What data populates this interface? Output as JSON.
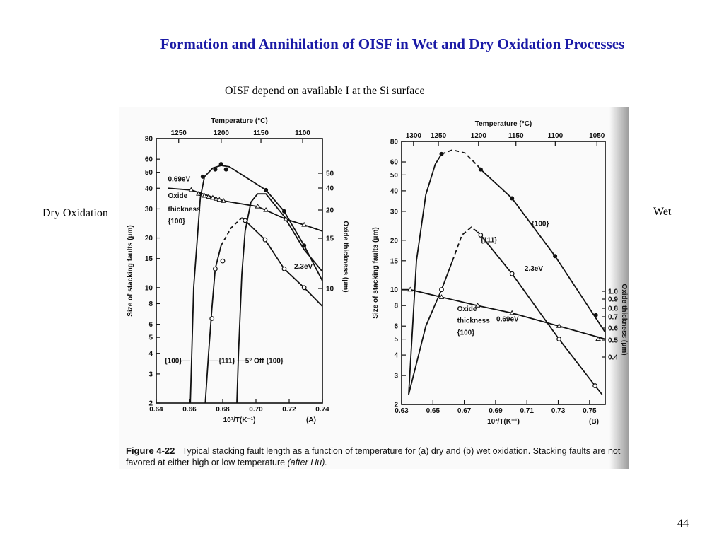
{
  "slide": {
    "title": "Formation and Annihilation of OISF in Wet and Dry Oxidation Processes",
    "subtitle": "OISF depend on available I at the Si surface",
    "left_label": "Dry Oxidation",
    "right_label": "Wet",
    "page_number": "44"
  },
  "caption": {
    "figure_label": "Figure 4-22",
    "text_main": "Typical stacking fault length as a function of temperature for (a) dry and (b) wet oxidation. Stacking faults are not favored at either high or low temperature",
    "text_credit": "(after Hu)."
  },
  "chart_data": [
    {
      "id": "A",
      "type": "line",
      "panel_label": "(A)",
      "x_label": "10³/T(K⁻¹)",
      "y_label": "Size of stacking faults (μm)",
      "y2_label": "Oxide thickness (μm)",
      "top_label": "Temperature (°C)",
      "xlim": [
        0.64,
        0.74
      ],
      "ylim": [
        2,
        80
      ],
      "y_scale": "log",
      "x_ticks": [
        "0.64",
        "0.66",
        "0.68",
        "0.70",
        "0.72",
        "0.74"
      ],
      "y_ticks": [
        2,
        3,
        4,
        5,
        6,
        8,
        10,
        15,
        20,
        30,
        40,
        50,
        60,
        80
      ],
      "y2_ticks": [
        10,
        15,
        20,
        40,
        50
      ],
      "top_ticks": [
        {
          "label": "1250",
          "x": 0.6535
        },
        {
          "label": "1200",
          "x": 0.6791
        },
        {
          "label": "1150",
          "x": 0.703
        },
        {
          "label": "1100",
          "x": 0.7281
        }
      ],
      "annotations": [
        {
          "text": "0.69eV",
          "x": 0.647,
          "y": 44
        },
        {
          "text": "Oxide",
          "x": 0.647,
          "y": 35
        },
        {
          "text": "thickness",
          "x": 0.647,
          "y": 29
        },
        {
          "text": "{100}",
          "x": 0.647,
          "y": 24.5
        },
        {
          "text": "2.3eV",
          "x": 0.723,
          "y": 13
        },
        {
          "text": "{100}",
          "x": 0.645,
          "y": 3.5
        },
        {
          "text": "{111}",
          "x": 0.6775,
          "y": 3.5
        },
        {
          "text": "5° Off {100}",
          "x": 0.6935,
          "y": 3.5
        }
      ],
      "series": [
        {
          "marker": "filled-circle",
          "points": [
            [
              0.666,
              37
            ],
            [
              0.668,
              47
            ],
            [
              0.6755,
              52
            ],
            [
              0.679,
              56
            ],
            [
              0.682,
              52
            ],
            [
              0.706,
              39
            ],
            [
              0.717,
              29
            ],
            [
              0.729,
              18
            ]
          ]
        },
        {
          "marker": "open-circle",
          "points": [
            [
              0.6735,
              6.5
            ],
            [
              0.6755,
              13
            ],
            [
              0.68,
              14.5
            ],
            [
              0.6935,
              25.5
            ],
            [
              0.7055,
              19.5
            ],
            [
              0.717,
              13
            ],
            [
              0.729,
              10
            ]
          ]
        },
        {
          "marker": "triangle",
          "points": [
            [
              0.661,
              39
            ],
            [
              0.6655,
              37
            ],
            [
              0.669,
              36
            ],
            [
              0.6715,
              35.5
            ],
            [
              0.674,
              35
            ],
            [
              0.676,
              34.5
            ],
            [
              0.678,
              34
            ],
            [
              0.6805,
              33.5
            ],
            [
              0.701,
              31
            ],
            [
              0.706,
              29.5
            ],
            [
              0.718,
              26
            ],
            [
              0.729,
              24
            ]
          ]
        }
      ]
    },
    {
      "id": "B",
      "type": "line",
      "panel_label": "(B)",
      "x_label": "10³/T(K⁻¹)",
      "y_label": "Size of stacking faults (μm)",
      "y2_label": "Oxide thickness (μm)",
      "top_label": "Temperature (°C)",
      "xlim": [
        0.63,
        0.76
      ],
      "ylim": [
        2,
        80
      ],
      "y_scale": "log",
      "x_ticks": [
        "0.63",
        "0.65",
        "0.67",
        "0.69",
        "0.71",
        "0.73",
        "0.75"
      ],
      "y_ticks": [
        2,
        3,
        4,
        5,
        6,
        8,
        10,
        15,
        20,
        30,
        40,
        50,
        60,
        80
      ],
      "y2_ticks": [
        "1.0",
        "0.9",
        "0.8",
        "0.7",
        "0.6",
        "0.5",
        "0.4"
      ],
      "top_ticks": [
        {
          "label": "1300",
          "x": 0.6376
        },
        {
          "label": "1250",
          "x": 0.6535
        },
        {
          "label": "1200",
          "x": 0.6791
        },
        {
          "label": "1150",
          "x": 0.703
        },
        {
          "label": "1100",
          "x": 0.7281
        },
        {
          "label": "1050",
          "x": 0.7547
        }
      ],
      "annotations": [
        {
          "text": "{100}",
          "x": 0.713,
          "y": 24.5
        },
        {
          "text": "{111}",
          "x": 0.6805,
          "y": 19.5
        },
        {
          "text": "2.3eV",
          "x": 0.7085,
          "y": 13
        },
        {
          "text": "Oxide",
          "x": 0.6655,
          "y": 7.4
        },
        {
          "text": "thickness",
          "x": 0.6655,
          "y": 6.3
        },
        {
          "text": "{100}",
          "x": 0.6655,
          "y": 5.3
        },
        {
          "text": "0.69eV",
          "x": 0.6905,
          "y": 6.4
        }
      ],
      "series": [
        {
          "marker": "filled-circle",
          "points": [
            [
              0.6555,
              67
            ],
            [
              0.6805,
              54
            ],
            [
              0.7005,
              36
            ],
            [
              0.728,
              16
            ],
            [
              0.754,
              7
            ]
          ]
        },
        {
          "marker": "open-circle",
          "points": [
            [
              0.6555,
              10
            ],
            [
              0.6805,
              21.5
            ],
            [
              0.7005,
              12.5
            ],
            [
              0.7305,
              5
            ],
            [
              0.7535,
              2.6
            ]
          ]
        },
        {
          "marker": "triangle",
          "points": [
            [
              0.6355,
              10
            ],
            [
              0.6555,
              9
            ],
            [
              0.6785,
              8
            ],
            [
              0.7005,
              7.2
            ],
            [
              0.7305,
              6
            ],
            [
              0.7555,
              5
            ]
          ]
        }
      ]
    }
  ]
}
